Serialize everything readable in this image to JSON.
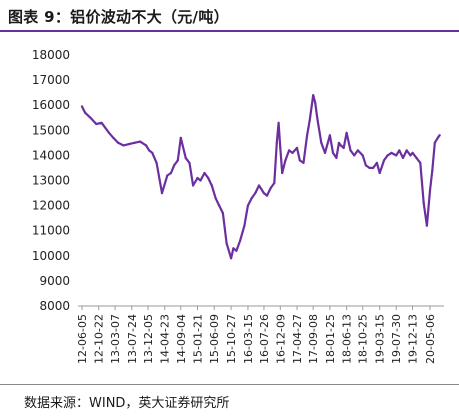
{
  "title": "图表 9：铝价波动不大（元/吨）",
  "source": "数据来源：WIND，英大证券研究所",
  "colors": {
    "line": "#6b2fa0",
    "rule": "#6b2fa0",
    "axis": "#9a9a9a"
  },
  "chart_data": {
    "type": "line",
    "title": "",
    "xlabel": "",
    "ylabel": "",
    "ylim": [
      8000,
      18000
    ],
    "yticks": [
      8000,
      9000,
      10000,
      11000,
      12000,
      13000,
      14000,
      15000,
      16000,
      17000,
      18000
    ],
    "grid": false,
    "xticks": [
      "12-06-05",
      "12-10-22",
      "13-03-07",
      "13-07-24",
      "13-12-05",
      "14-04-23",
      "14-09-04",
      "15-01-21",
      "15-06-09",
      "15-10-27",
      "16-03-15",
      "16-07-26",
      "16-12-09",
      "17-04-27",
      "17-09-08",
      "18-01-25",
      "18-06-13",
      "18-10-25",
      "19-03-15",
      "19-07-30",
      "19-12-13",
      "20-05-06"
    ],
    "series": [
      {
        "x": [
          "2012-06-05",
          "2012-07-01",
          "2012-08-15",
          "2012-10-01",
          "2012-11-15",
          "2013-01-15",
          "2013-02-20",
          "2013-04-01",
          "2013-05-15",
          "2013-07-01",
          "2013-08-15",
          "2013-10-01",
          "2013-11-20",
          "2013-12-15",
          "2014-01-10",
          "2014-02-15",
          "2014-04-01",
          "2014-05-15",
          "2014-06-15",
          "2014-07-10",
          "2014-08-10",
          "2014-09-04",
          "2014-10-15",
          "2014-11-15",
          "2014-12-15",
          "2015-01-21",
          "2015-02-15",
          "2015-03-20",
          "2015-04-20",
          "2015-05-20",
          "2015-06-20",
          "2015-07-20",
          "2015-08-20",
          "2015-09-20",
          "2015-10-27",
          "2015-11-15",
          "2015-12-10",
          "2016-01-10",
          "2016-02-15",
          "2016-03-15",
          "2016-04-15",
          "2016-05-15",
          "2016-06-15",
          "2016-07-26",
          "2016-08-20",
          "2016-09-20",
          "2016-10-20",
          "2016-11-10",
          "2016-11-25",
          "2016-12-09",
          "2016-12-25",
          "2017-01-20",
          "2017-02-20",
          "2017-03-20",
          "2017-04-27",
          "2017-05-20",
          "2017-06-20",
          "2017-07-20",
          "2017-08-10",
          "2017-09-08",
          "2017-09-25",
          "2017-10-15",
          "2017-11-15",
          "2017-12-15",
          "2018-01-25",
          "2018-02-20",
          "2018-03-20",
          "2018-04-10",
          "2018-04-25",
          "2018-05-20",
          "2018-06-13",
          "2018-07-15",
          "2018-08-15",
          "2018-09-15",
          "2018-10-25",
          "2018-11-20",
          "2018-12-20",
          "2019-01-20",
          "2019-02-20",
          "2019-03-15",
          "2019-04-20",
          "2019-05-20",
          "2019-06-20",
          "2019-07-30",
          "2019-08-25",
          "2019-09-25",
          "2019-10-25",
          "2019-11-25",
          "2019-12-13",
          "2020-01-15",
          "2020-02-15",
          "2020-03-15",
          "2020-04-10",
          "2020-05-06",
          "2020-05-25",
          "2020-06-15",
          "2020-07-10",
          "2020-07-25"
        ],
        "values": [
          15950,
          15700,
          15500,
          15250,
          15300,
          14900,
          14700,
          14500,
          14400,
          14450,
          14500,
          14550,
          14400,
          14200,
          14100,
          13700,
          12500,
          13200,
          13300,
          13600,
          13800,
          14700,
          13900,
          13700,
          12800,
          13100,
          13000,
          13300,
          13100,
          12800,
          12300,
          12000,
          11700,
          10500,
          9900,
          10300,
          10200,
          10600,
          11200,
          12000,
          12300,
          12500,
          12800,
          12500,
          12400,
          12700,
          12900,
          14500,
          15300,
          14300,
          13300,
          13800,
          14200,
          14100,
          14300,
          13800,
          13700,
          14800,
          15400,
          16400,
          16100,
          15400,
          14500,
          14100,
          14800,
          14100,
          13900,
          14500,
          14400,
          14300,
          14900,
          14200,
          14000,
          14200,
          14000,
          13600,
          13500,
          13500,
          13700,
          13300,
          13800,
          14000,
          14100,
          14000,
          14200,
          13900,
          14200,
          14000,
          14100,
          13900,
          13700,
          12100,
          11200,
          12600,
          13400,
          14500,
          14700,
          14800
        ]
      }
    ]
  }
}
